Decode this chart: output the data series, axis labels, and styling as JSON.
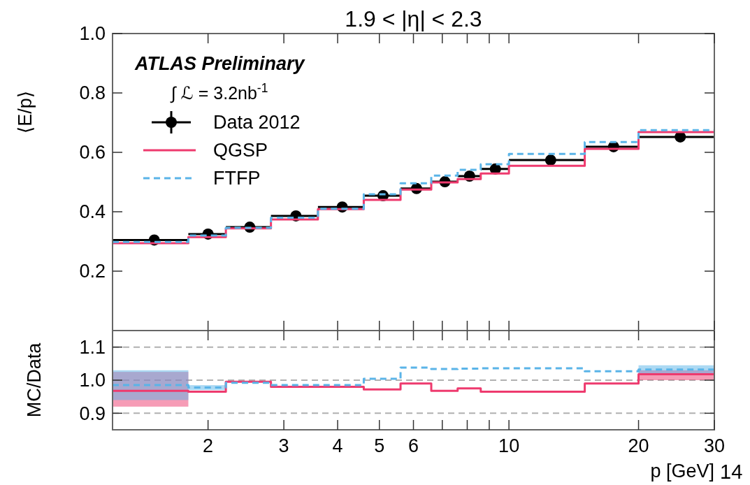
{
  "chart_data": [
    {
      "type": "step",
      "title": "1.9 < |η| < 2.3",
      "ylabel": "⟨E/p⟩",
      "annotations": [
        "ATLAS Preliminary",
        "∫ ℒ = 3.2nb$^{-1}$"
      ],
      "log": "x",
      "legend": "top left",
      "tick_labels": "y",
      "xlim": [
        1.2,
        30
      ],
      "xticks": [
        {
          "value": 2,
          "label": null
        },
        {
          "value": 3,
          "label": null
        },
        {
          "value": 4,
          "label": null
        },
        {
          "value": 5,
          "label": null
        },
        {
          "value": 6,
          "label": null
        },
        {
          "value": 7,
          "label": null
        },
        {
          "value": 8,
          "label": null
        },
        {
          "value": 9,
          "label": null
        },
        {
          "value": 10,
          "label": null
        },
        {
          "value": 20,
          "label": null
        },
        {
          "value": 30,
          "label": null
        }
      ],
      "ylim": [
        0,
        1
      ],
      "yticks": [
        0.2,
        0.4,
        0.6,
        0.8,
        {
          "value": 1,
          "label": "1.0"
        }
      ],
      "series": [
        {
          "name": "Data 2012",
          "type": "scatter",
          "marker": "circle",
          "color": "#000000",
          "x": [
            1.5,
            2,
            2.5,
            3.2,
            4.1,
            5.1,
            6.1,
            7.1,
            8.1,
            9.3,
            12.5,
            17.5,
            25
          ],
          "values": [
            0.305,
            0.325,
            0.348,
            0.386,
            0.416,
            0.454,
            0.478,
            0.501,
            0.52,
            0.544,
            0.574,
            0.619,
            0.652
          ],
          "xerrors": [
            [
              1.2,
              1.8
            ],
            [
              1.8,
              2.2
            ],
            [
              2.2,
              2.8
            ],
            [
              2.8,
              3.6
            ],
            [
              3.6,
              4.6
            ],
            [
              4.6,
              5.6
            ],
            [
              5.6,
              6.6
            ],
            [
              6.6,
              7.6
            ],
            [
              7.6,
              8.6
            ],
            [
              8.6,
              10
            ],
            [
              10,
              15
            ],
            [
              15,
              20
            ],
            [
              20,
              30
            ]
          ]
        },
        {
          "name": "QGSP",
          "line_style": "solid",
          "color": "#ee3a6e",
          "x": [
            1.2,
            1.8,
            2.2,
            2.8,
            3.6,
            4.6,
            5.6,
            6.6,
            7.6,
            8.6,
            10,
            15,
            20,
            30
          ],
          "values": [
            0.294,
            0.315,
            0.344,
            0.374,
            0.409,
            0.44,
            0.475,
            0.499,
            0.51,
            0.529,
            0.555,
            0.612,
            0.668,
            0.668
          ]
        },
        {
          "name": "FTFP",
          "line_style": "dashed",
          "color": "#5ab4e8",
          "x": [
            1.2,
            1.8,
            2.2,
            2.8,
            3.6,
            4.6,
            5.6,
            6.6,
            7.6,
            8.6,
            10,
            15,
            20,
            30
          ],
          "values": [
            0.298,
            0.32,
            0.346,
            0.38,
            0.41,
            0.459,
            0.496,
            0.522,
            0.541,
            0.56,
            0.595,
            0.635,
            0.675,
            0.675
          ]
        }
      ]
    },
    {
      "type": "step",
      "xlabel": "p [GeV]",
      "ylabel": "MC/Data",
      "annotations": [
        "14"
      ],
      "log": "x",
      "xlim": [
        1.2,
        30
      ],
      "xticks": [
        2,
        3,
        4,
        5,
        6,
        {
          "value": 7,
          "label": null
        },
        {
          "value": 8,
          "label": null
        },
        {
          "value": 9,
          "label": null
        },
        10,
        20,
        30
      ],
      "ylim": [
        0.85,
        1.15
      ],
      "yticks": [
        0.9,
        {
          "value": 1,
          "label": "1.0"
        },
        1.1
      ],
      "ref_lines": [
        {
          "axis": "y",
          "value": 0.9,
          "color": "#b0b0b0",
          "line_style": "dashed"
        },
        {
          "axis": "y",
          "value": 1,
          "color": "#b0b0b0",
          "line_style": "dashed"
        },
        {
          "axis": "y",
          "value": 1.1,
          "color": "#b0b0b0",
          "line_style": "dashed"
        }
      ],
      "series": [
        {
          "line_style": "solid",
          "color": "#ee3a6e",
          "x": [
            1.2,
            1.8,
            2.2,
            2.8,
            3.6,
            4.6,
            5.6,
            6.6,
            7.6,
            8.6,
            10,
            15,
            20,
            30
          ],
          "values": [
            0.968,
            0.965,
            0.995,
            0.98,
            0.98,
            0.972,
            0.99,
            0.968,
            0.975,
            0.965,
            0.965,
            0.99,
            1.018,
            1.018
          ],
          "lower": [
            0.92,
            null,
            null,
            null,
            null,
            null,
            null,
            null,
            null,
            null,
            null,
            null,
            1.0,
            1.0
          ],
          "upper": [
            1.025,
            null,
            null,
            null,
            null,
            null,
            null,
            null,
            null,
            null,
            null,
            null,
            1.03,
            1.03
          ]
        },
        {
          "line_style": "dashed",
          "color": "#5ab4e8",
          "x": [
            1.2,
            1.8,
            2.2,
            2.8,
            3.6,
            4.6,
            5.6,
            6.6,
            7.6,
            8.6,
            10,
            15,
            20,
            30
          ],
          "values": [
            0.985,
            0.978,
            0.992,
            0.985,
            0.985,
            1.004,
            1.038,
            1.034,
            1.035,
            1.036,
            1.036,
            1.027,
            1.032,
            1.032
          ],
          "lower": [
            0.94,
            0.97,
            null,
            null,
            null,
            null,
            null,
            null,
            null,
            null,
            null,
            null,
            1.02,
            1.02
          ],
          "upper": [
            1.03,
            0.985,
            null,
            null,
            null,
            null,
            null,
            null,
            null,
            null,
            null,
            null,
            1.045,
            1.045
          ]
        }
      ]
    }
  ]
}
